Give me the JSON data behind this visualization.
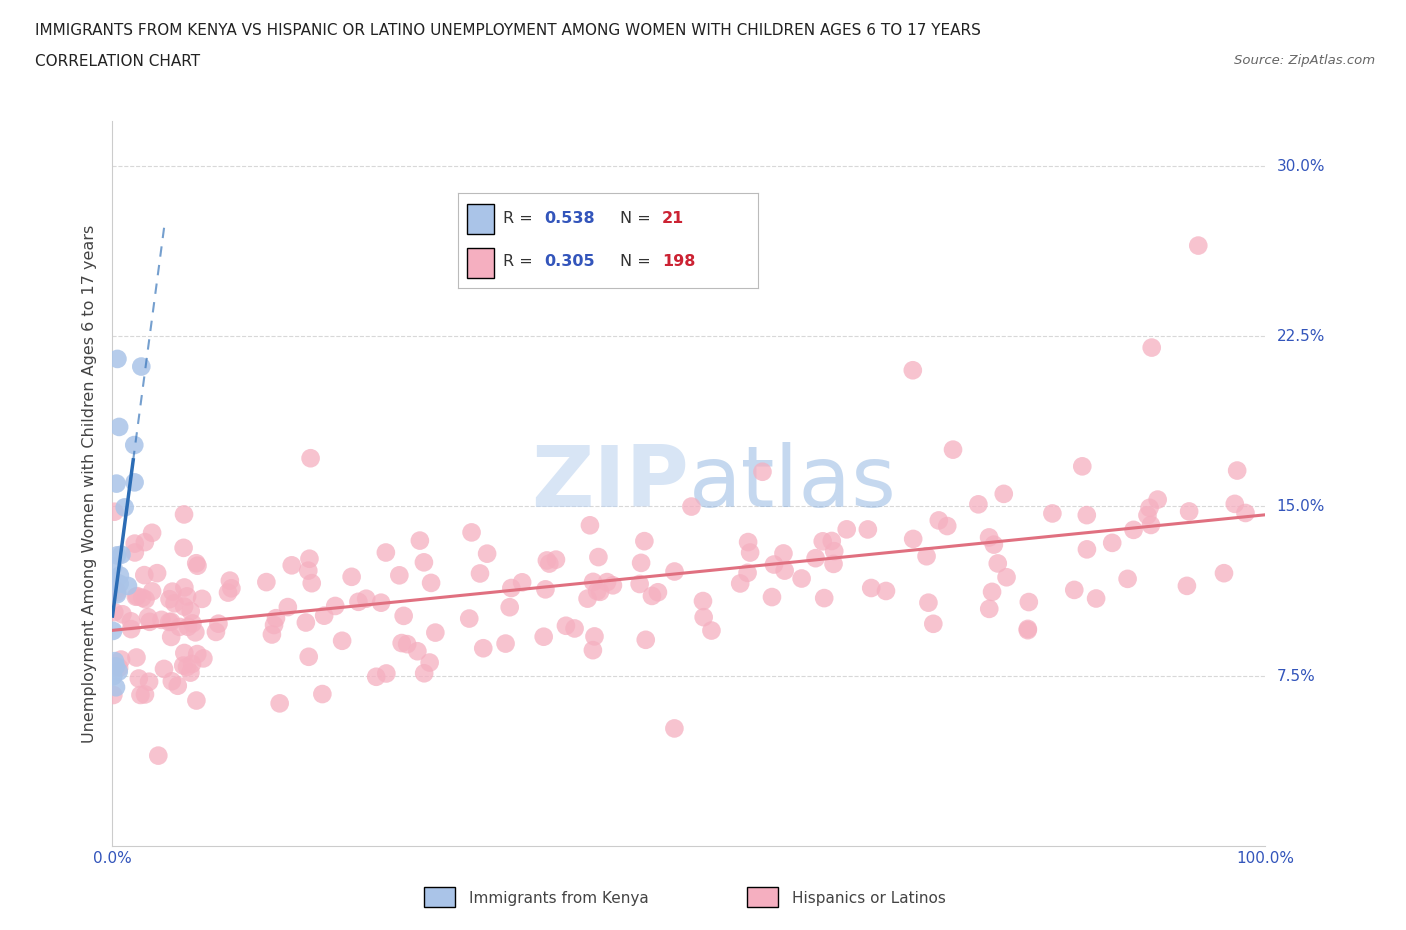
{
  "title_line1": "IMMIGRANTS FROM KENYA VS HISPANIC OR LATINO UNEMPLOYMENT AMONG WOMEN WITH CHILDREN AGES 6 TO 17 YEARS",
  "title_line2": "CORRELATION CHART",
  "source": "Source: ZipAtlas.com",
  "ylabel": "Unemployment Among Women with Children Ages 6 to 17 years",
  "xlim": [
    0,
    100
  ],
  "ylim": [
    0,
    32
  ],
  "yticks": [
    7.5,
    15.0,
    22.5,
    30.0
  ],
  "ytick_labels": [
    "7.5%",
    "15.0%",
    "22.5%",
    "30.0%"
  ],
  "xtick_labels_left": "0.0%",
  "xtick_labels_right": "100.0%",
  "legend_blue_R": "0.538",
  "legend_blue_N": "21",
  "legend_pink_R": "0.305",
  "legend_pink_N": "198",
  "legend_label_blue": "Immigrants from Kenya",
  "legend_label_pink": "Hispanics or Latinos",
  "background_color": "#ffffff",
  "grid_color": "#d8d8d8",
  "blue_scatter_color": "#aac4e8",
  "pink_scatter_color": "#f5afc0",
  "blue_trend_color": "#2b6cb5",
  "pink_trend_color": "#e07080",
  "tick_label_color": "#3355bb",
  "watermark_color": "#ccdff5",
  "R_value_color": "#3355bb",
  "N_value_color": "#cc2233"
}
